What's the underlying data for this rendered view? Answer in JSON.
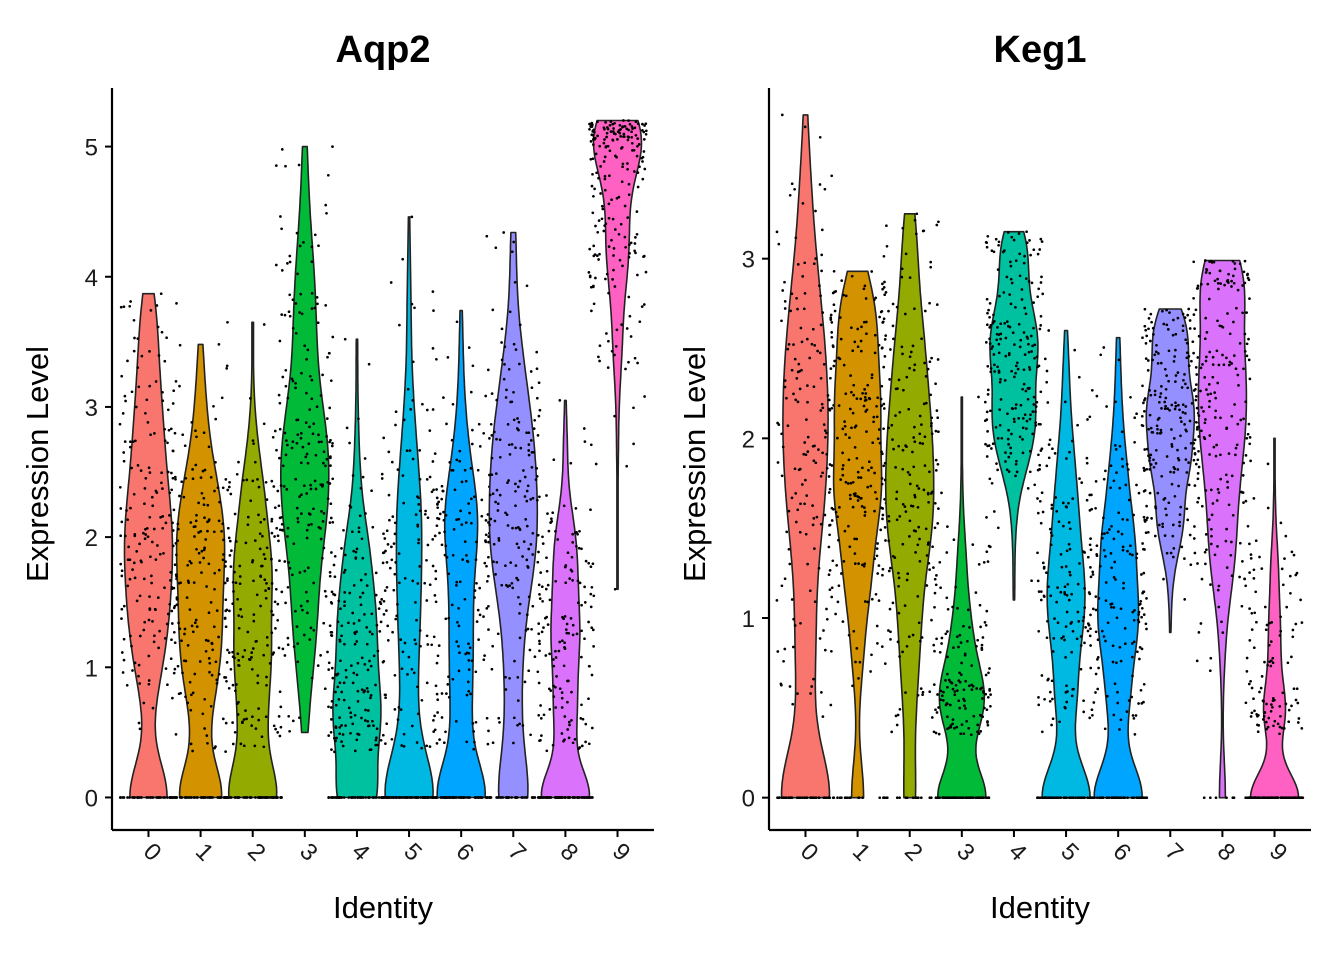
{
  "chart_data": [
    {
      "type": "violin",
      "title": "Aqp2",
      "xlabel": "Identity",
      "ylabel": "Expression Level",
      "categories": [
        "0",
        "1",
        "2",
        "3",
        "4",
        "5",
        "6",
        "7",
        "8",
        "9"
      ],
      "colors": [
        "#F8766D",
        "#D39200",
        "#93AA00",
        "#00BA38",
        "#00C19F",
        "#00B9E3",
        "#00A5FF",
        "#9590FF",
        "#DB72FB",
        "#FF61C3"
      ],
      "ylim": [
        -0.25,
        5.45
      ],
      "yticks": [
        0,
        1,
        2,
        3,
        4,
        5
      ],
      "grid": false,
      "legend": "none",
      "violins": [
        {
          "category": "0",
          "max": 3.87,
          "median": 2.1,
          "zero_fraction": 0.22
        },
        {
          "category": "1",
          "max": 3.48,
          "median": 1.7,
          "zero_fraction": 0.2
        },
        {
          "category": "2",
          "max": 3.65,
          "median": 1.4,
          "zero_fraction": 0.25
        },
        {
          "category": "3",
          "max": 5.0,
          "min": 0.5,
          "median": 2.6,
          "zero_fraction": 0.0
        },
        {
          "category": "4",
          "max": 3.52,
          "median": 1.0,
          "zero_fraction": 0.22
        },
        {
          "category": "5",
          "max": 4.46,
          "median": 1.6,
          "zero_fraction": 0.3
        },
        {
          "category": "6",
          "max": 3.74,
          "median": 1.7,
          "zero_fraction": 0.3
        },
        {
          "category": "7",
          "max": 4.34,
          "median": 2.0,
          "zero_fraction": 0.15
        },
        {
          "category": "8",
          "max": 3.05,
          "median": 1.3,
          "zero_fraction": 0.3
        },
        {
          "category": "9",
          "max": 5.2,
          "min": 1.6,
          "median": 4.8,
          "zero_fraction": 0.0
        }
      ]
    },
    {
      "type": "violin",
      "title": "Keg1",
      "xlabel": "Identity",
      "ylabel": "Expression Level",
      "categories": [
        "0",
        "1",
        "2",
        "3",
        "4",
        "5",
        "6",
        "7",
        "8",
        "9"
      ],
      "colors": [
        "#F8766D",
        "#D39200",
        "#93AA00",
        "#00BA38",
        "#00C19F",
        "#00B9E3",
        "#00A5FF",
        "#9590FF",
        "#DB72FB",
        "#FF61C3"
      ],
      "ylim": [
        -0.18,
        3.95
      ],
      "yticks": [
        0,
        1,
        2,
        3
      ],
      "grid": false,
      "legend": "none",
      "violins": [
        {
          "category": "0",
          "max": 3.8,
          "median": 2.0,
          "zero_fraction": 0.3
        },
        {
          "category": "1",
          "max": 2.93,
          "median": 1.9,
          "zero_fraction": 0.1
        },
        {
          "category": "2",
          "max": 3.25,
          "median": 1.9,
          "zero_fraction": 0.1
        },
        {
          "category": "3",
          "max": 2.23,
          "median": 0.6,
          "zero_fraction": 0.3
        },
        {
          "category": "4",
          "max": 3.15,
          "min": 1.1,
          "median": 2.4,
          "zero_fraction": 0.0
        },
        {
          "category": "5",
          "max": 2.6,
          "median": 1.3,
          "zero_fraction": 0.3
        },
        {
          "category": "6",
          "max": 2.56,
          "median": 1.2,
          "zero_fraction": 0.3
        },
        {
          "category": "7",
          "max": 2.72,
          "min": 0.92,
          "median": 2.1,
          "zero_fraction": 0.0
        },
        {
          "category": "8",
          "max": 2.99,
          "median": 2.2,
          "zero_fraction": 0.02
        },
        {
          "category": "9",
          "max": 2.0,
          "median": 0.6,
          "zero_fraction": 0.5
        }
      ]
    }
  ]
}
